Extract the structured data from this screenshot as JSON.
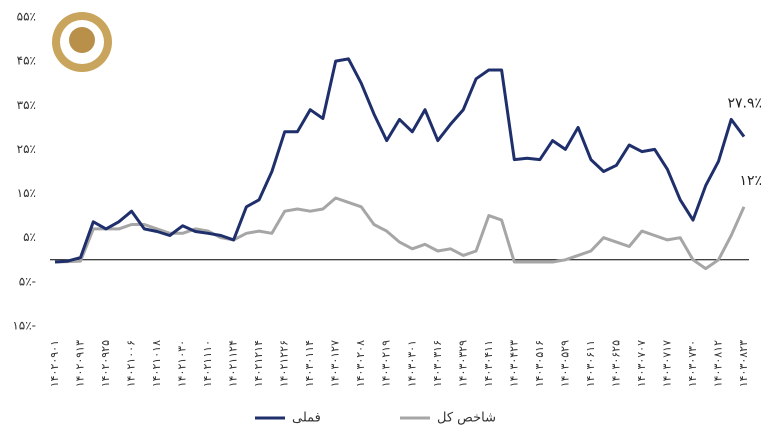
{
  "chart_data": {
    "type": "line",
    "categories": [
      "۱۴۰۲۰۹۰۱",
      null,
      "۱۴۰۲۰۹۱۳",
      null,
      "۱۴۰۲۰۹۲۵",
      null,
      "۱۴۰۲۱۰۰۶",
      null,
      "۱۴۰۲۱۰۱۸",
      null,
      "۱۴۰۲۱۰۳۰",
      null,
      "۱۴۰۲۱۱۱۰",
      null,
      "۱۴۰۲۱۱۲۴",
      null,
      "۱۴۰۲۱۲۱۴",
      null,
      "۱۴۰۲۱۲۲۶",
      null,
      "۱۴۰۳۰۱۱۴",
      null,
      "۱۴۰۳۰۱۲۷",
      null,
      "۱۴۰۳۰۲۰۸",
      null,
      "۱۴۰۳۰۲۱۹",
      null,
      "۱۴۰۳۰۳۰۱",
      null,
      "۱۴۰۳۰۳۱۶",
      null,
      "۱۴۰۳۰۳۲۹",
      null,
      "۱۴۰۳۰۴۱۱",
      null,
      "۱۴۰۳۰۴۲۳",
      null,
      "۱۴۰۳۰۵۱۶",
      null,
      "۱۴۰۳۰۵۲۹",
      null,
      "۱۴۰۳۰۶۱۱",
      null,
      "۱۴۰۳۰۶۲۵",
      null,
      "۱۴۰۳۰۷۰۷",
      null,
      "۱۴۰۳۰۷۱۷",
      null,
      "۱۴۰۳۰۷۳۰",
      null,
      "۱۴۰۳۰۸۱۲",
      null,
      "۱۴۰۳۰۸۲۳"
    ],
    "series": [
      {
        "name": "فملی",
        "color": "#1f2f6b",
        "values": [
          -0.5,
          -0.3,
          0.5,
          8.6,
          7,
          8.6,
          11,
          7,
          6.4,
          5.5,
          7.7,
          6.4,
          6,
          5.5,
          4.5,
          12,
          13.6,
          20,
          29,
          29,
          34,
          32,
          45,
          45.5,
          40,
          33,
          27,
          31.8,
          29,
          34,
          27,
          30.7,
          34,
          41,
          43,
          43,
          22.7,
          23,
          22.7,
          27,
          25,
          30,
          22.7,
          20,
          21.4,
          26,
          24.5,
          25,
          20.5,
          13.6,
          9,
          16.8,
          22.3,
          31.8,
          27.9
        ],
        "value_labels": [
          null,
          null,
          null,
          null,
          null,
          null,
          null,
          null,
          null,
          null,
          null,
          null,
          null,
          null,
          null,
          null,
          null,
          null,
          null,
          null,
          null,
          null,
          null,
          null,
          null,
          null,
          null,
          null,
          null,
          null,
          null,
          null,
          null,
          null,
          null,
          null,
          null,
          null,
          null,
          null,
          null,
          null,
          null,
          null,
          null,
          null,
          null,
          null,
          null,
          null,
          null,
          null,
          null,
          null,
          "۲۷.۹٪"
        ]
      },
      {
        "name": "شاخص کل",
        "color": "#a6a6a6",
        "values": [
          -0.5,
          -0.4,
          -0.3,
          7,
          7,
          7,
          8,
          8,
          7,
          6,
          6,
          7,
          6.5,
          5,
          4.5,
          6,
          6.5,
          6,
          11,
          11.5,
          11,
          11.5,
          14,
          13,
          12,
          8,
          6.5,
          4,
          2.5,
          3.5,
          2,
          2.5,
          1,
          2,
          10,
          9,
          -0.5,
          -0.5,
          -0.5,
          -0.5,
          0,
          1,
          2,
          5,
          4,
          3,
          6.5,
          5.5,
          4.5,
          5,
          0,
          -2,
          0,
          5.5,
          12
        ],
        "value_labels": [
          null,
          null,
          null,
          null,
          null,
          null,
          null,
          null,
          null,
          null,
          null,
          null,
          null,
          null,
          null,
          null,
          null,
          null,
          null,
          null,
          null,
          null,
          null,
          null,
          null,
          null,
          null,
          null,
          null,
          null,
          null,
          null,
          null,
          null,
          null,
          null,
          null,
          null,
          null,
          null,
          null,
          null,
          null,
          null,
          null,
          null,
          null,
          null,
          null,
          null,
          null,
          null,
          null,
          null,
          "۱۲٪"
        ]
      }
    ],
    "ylim": [
      -15,
      55
    ],
    "yticks": [
      {
        "value": 55,
        "label": "۵۵٪"
      },
      {
        "value": 45,
        "label": "۴۵٪"
      },
      {
        "value": 35,
        "label": "۳۵٪"
      },
      {
        "value": 25,
        "label": "۲۵٪"
      },
      {
        "value": 15,
        "label": "۱۵٪"
      },
      {
        "value": 5,
        "label": "۵٪"
      },
      {
        "value": -5,
        "label": "۵٪-"
      },
      {
        "value": -15,
        "label": "۱۵٪-"
      }
    ],
    "grid": false,
    "legend": "bottom"
  }
}
